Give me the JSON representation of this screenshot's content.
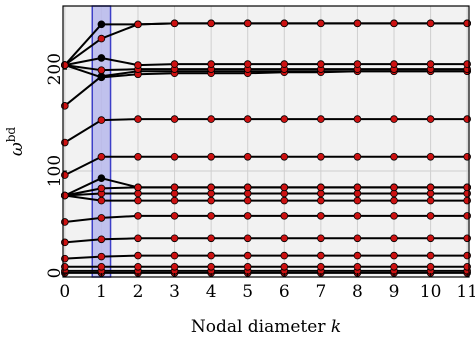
{
  "chart_data": {
    "type": "line",
    "xlabel": "Nodal diameter ",
    "xlabel_var": "k",
    "ylabel_base": "ω",
    "ylabel_sup": "bd",
    "x": [
      0,
      1,
      2,
      3,
      4,
      5,
      6,
      7,
      8,
      9,
      10,
      11
    ],
    "x_tick_labels": [
      "0",
      "1",
      "2",
      "3",
      "4",
      "5",
      "6",
      "7",
      "8",
      "9",
      "10",
      "11"
    ],
    "y_tick_values": [
      0,
      100,
      200
    ],
    "y_tick_labels": [
      "0",
      "100",
      "200"
    ],
    "xlim": [
      -0.05,
      11.05
    ],
    "ylim": [
      -4,
      262
    ],
    "grid": true,
    "highlight_band": [
      0.75,
      1.25
    ],
    "colors": {
      "background": "#f2f2f2",
      "grid": "#cfcfcf",
      "band_fill": "#b7b8ec",
      "band_edge": "#3d3fc8",
      "line": "#000000",
      "marker": "#cc1111",
      "marker_edge": "#000000",
      "special_marker": "#000000"
    },
    "series": [
      {
        "values": [
          0,
          0,
          0,
          0,
          0,
          0,
          0,
          0,
          0,
          0,
          0,
          0
        ]
      },
      {
        "values": [
          2,
          2,
          2,
          2,
          2,
          2,
          2,
          2,
          2,
          2,
          2,
          2
        ]
      },
      {
        "values": [
          6,
          6,
          6,
          6,
          6,
          6,
          6,
          6,
          6,
          6,
          6,
          6
        ]
      },
      {
        "values": [
          14,
          16,
          17,
          17,
          17,
          17,
          17,
          17,
          17,
          17,
          17,
          17
        ]
      },
      {
        "values": [
          30,
          33,
          34,
          34,
          34,
          34,
          34,
          34,
          34,
          34,
          34,
          34
        ]
      },
      {
        "values": [
          50,
          54,
          56,
          56,
          56,
          56,
          56,
          56,
          56,
          56,
          56,
          56
        ]
      },
      {
        "values": [
          76,
          71,
          71,
          71,
          71,
          71,
          71,
          71,
          71,
          71,
          71,
          71
        ]
      },
      {
        "values": [
          76,
          78,
          78,
          78,
          78,
          78,
          78,
          78,
          78,
          78,
          78,
          78
        ]
      },
      {
        "values": [
          76,
          83,
          84,
          84,
          84,
          84,
          84,
          84,
          84,
          84,
          84,
          84
        ]
      },
      {
        "values": [
          76,
          93,
          84,
          84,
          84,
          84,
          84,
          84,
          84,
          84,
          84,
          84
        ],
        "special_index": 1
      },
      {
        "values": [
          96,
          114,
          114,
          114,
          114,
          114,
          114,
          114,
          114,
          114,
          114,
          114
        ]
      },
      {
        "values": [
          128,
          150,
          151,
          151,
          151,
          151,
          151,
          151,
          151,
          151,
          151,
          151
        ]
      },
      {
        "values": [
          164,
          193,
          198,
          198,
          198,
          198,
          198,
          198,
          198,
          198,
          198,
          198
        ]
      },
      {
        "values": [
          204,
          192,
          195,
          196,
          196,
          196,
          197,
          197,
          198,
          198,
          198,
          198
        ],
        "special_index": 1
      },
      {
        "values": [
          204,
          199,
          200,
          200,
          200,
          200,
          200,
          200,
          200,
          200,
          200,
          200
        ]
      },
      {
        "values": [
          204,
          211,
          204,
          205,
          205,
          205,
          205,
          205,
          205,
          205,
          205,
          205
        ],
        "special_index": 1
      },
      {
        "values": [
          204,
          230,
          244,
          245,
          245,
          245,
          245,
          245,
          245,
          245,
          245,
          245
        ]
      },
      {
        "values": [
          204,
          244,
          244,
          245,
          245,
          245,
          245,
          245,
          245,
          245,
          245,
          245
        ],
        "special_index": 1
      }
    ]
  }
}
